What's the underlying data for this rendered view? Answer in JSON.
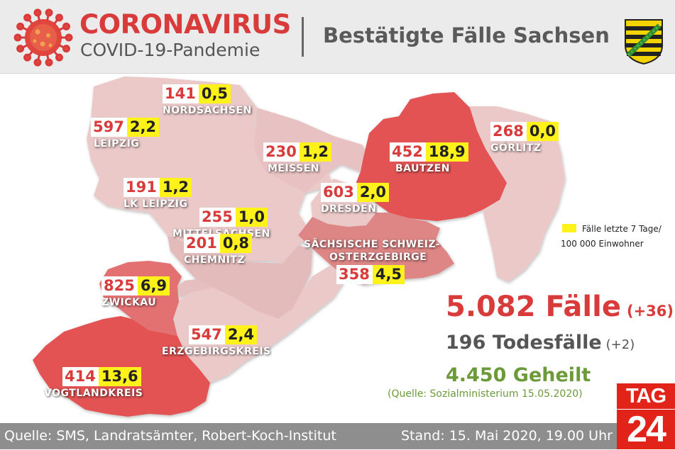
{
  "header": {
    "title": "CORONAVIRUS",
    "subtitle": "COVID-19-Pandemie",
    "right_title": "Bestätigte Fälle Sachsen"
  },
  "colors": {
    "accent_red": "#d93a3a",
    "rate_yellow": "#fff21a",
    "region_light": "#ebc9c9",
    "region_medium": "#de8585",
    "region_dark": "#e35353",
    "recovered_green": "#6c9a3a"
  },
  "districts": [
    {
      "name": "NORDSACHSEN",
      "cases": "141",
      "rate": "0,5",
      "shade": "light"
    },
    {
      "name": "LEIPZIG",
      "cases": "597",
      "rate": "2,2",
      "shade": "light"
    },
    {
      "name": "MEISSEN",
      "cases": "230",
      "rate": "1,2",
      "shade": "light"
    },
    {
      "name": "BAUTZEN",
      "cases": "452",
      "rate": "18,9",
      "shade": "dark"
    },
    {
      "name": "GÖRLITZ",
      "cases": "268",
      "rate": "0,0",
      "shade": "light"
    },
    {
      "name": "LK LEIPZIG",
      "cases": "191",
      "rate": "1,2",
      "shade": "light"
    },
    {
      "name": "DRESDEN",
      "cases": "603",
      "rate": "2,0",
      "shade": "light"
    },
    {
      "name": "MITTELSACHSEN",
      "cases": "255",
      "rate": "1,0",
      "shade": "light"
    },
    {
      "name": "SÄCHSISCHE SCHWEIZ-",
      "name2": "OSTERZGEBIRGE",
      "cases": "358",
      "rate": "4,5",
      "shade": "medium"
    },
    {
      "name": "CHEMNITZ",
      "cases": "201",
      "rate": "0,8",
      "shade": "light"
    },
    {
      "name": "ZWICKAU",
      "cases": "825",
      "rate": "6,9",
      "shade": "medium"
    },
    {
      "name": "ERZGEBIRGSKREIS",
      "cases": "547",
      "rate": "2,4",
      "shade": "light"
    },
    {
      "name": "VOGTLANDKREIS",
      "cases": "414",
      "rate": "13,6",
      "shade": "dark"
    }
  ],
  "legend": {
    "line1": "Fälle letzte 7 Tage/",
    "line2": "100 000 Einwohner"
  },
  "summary": {
    "cases_total": "5.082 Fälle",
    "cases_delta": "(+36)",
    "deaths_total": "196 Todesfälle",
    "deaths_delta": "(+2)",
    "recovered": "4.450 Geheilt",
    "source": "(Quelle: Sozialministerium 15.05.2020)"
  },
  "footer": {
    "source": "Quelle: SMS, Landratsämter, Robert-Koch-Institut",
    "date": "Stand: 15. Mai 2020, 19.00 Uhr"
  },
  "logo": {
    "top": "TAG",
    "bottom": "24"
  }
}
